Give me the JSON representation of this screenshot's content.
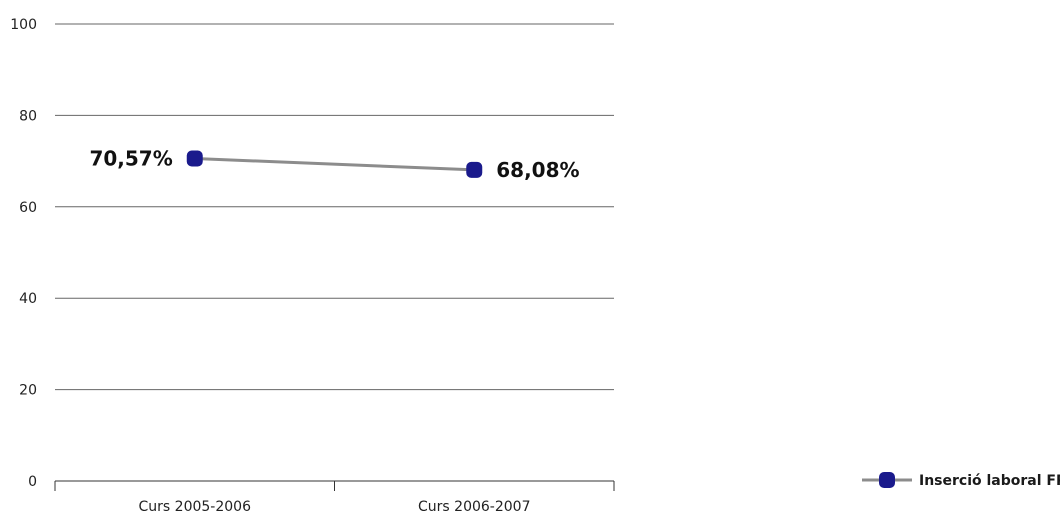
{
  "chart_data": {
    "type": "line",
    "categories": [
      "Curs 2005-2006",
      "Curs 2006-2007"
    ],
    "series": [
      {
        "name": "Inserció laboral FP",
        "values": [
          70.57,
          68.08
        ],
        "data_labels": [
          "70,57%",
          "68,08%"
        ]
      }
    ],
    "ylim": [
      0,
      100
    ],
    "yticks": [
      0,
      20,
      40,
      60,
      80,
      100
    ],
    "ytick_labels": [
      "0",
      "20",
      "40",
      "60",
      "80",
      "100"
    ],
    "grid": true,
    "legend_position": "bottom-right",
    "colors": {
      "line": "#8c8c8c",
      "marker": "#1a1a8c",
      "grid": "#666666",
      "axis": "#333333"
    }
  }
}
